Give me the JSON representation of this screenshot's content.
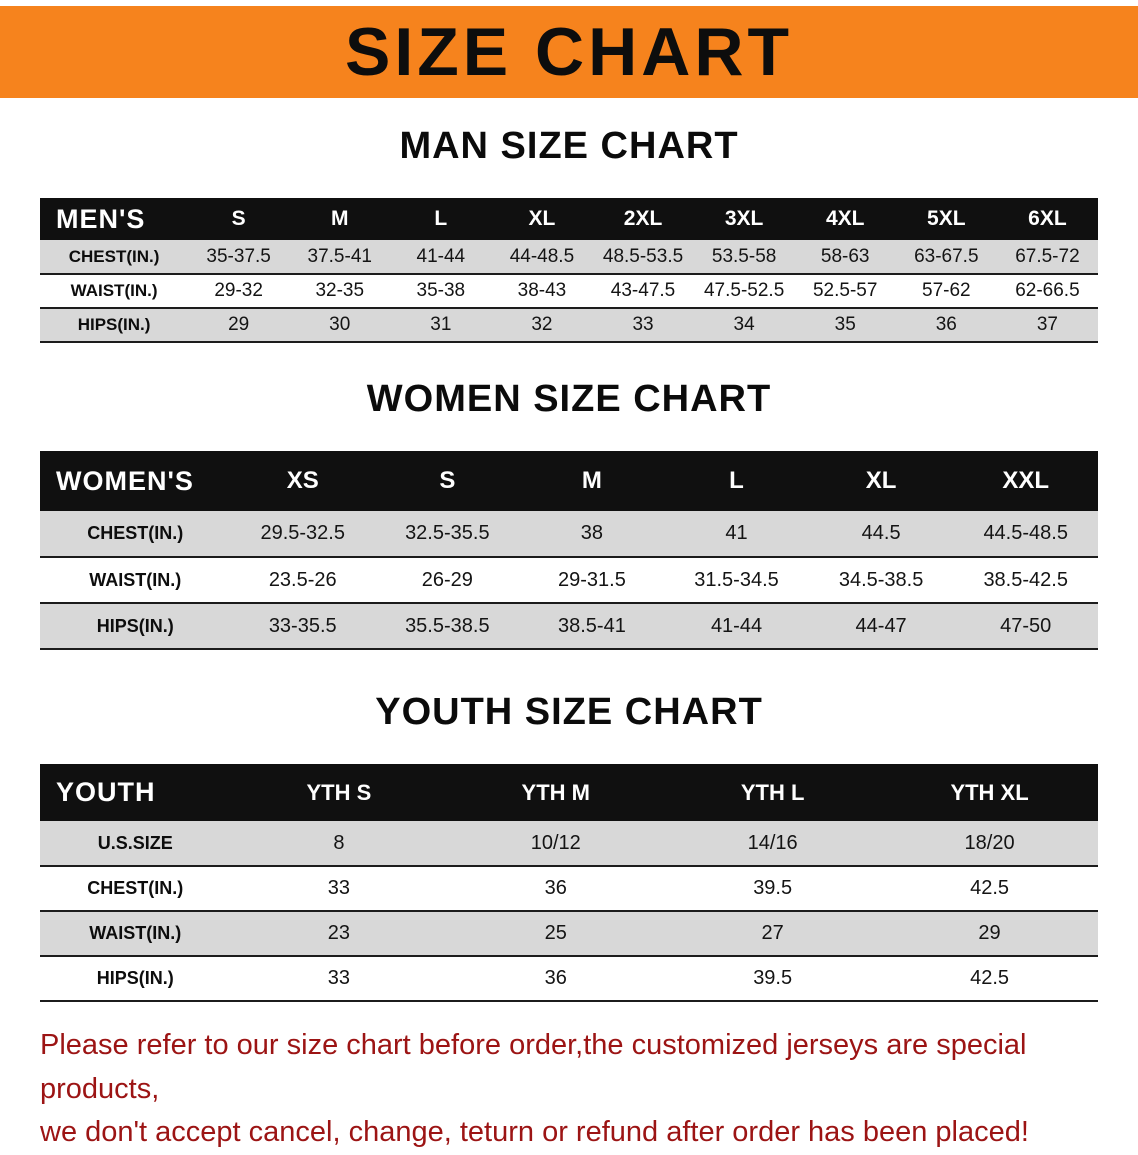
{
  "banner": {
    "title": "SIZE CHART",
    "bg_color": "#f6831d"
  },
  "colors": {
    "stripe": "#d8d8d8",
    "header_bg": "#101010",
    "footer_text": "#9c1414"
  },
  "sections": [
    {
      "heading": "MAN SIZE CHART",
      "table": {
        "label": "MEN'S",
        "columns": [
          "S",
          "M",
          "L",
          "XL",
          "2XL",
          "3XL",
          "4XL",
          "5XL",
          "6XL"
        ],
        "rows": [
          {
            "label": "CHEST(IN.)",
            "values": [
              "35-37.5",
              "37.5-41",
              "41-44",
              "44-48.5",
              "48.5-53.5",
              "53.5-58",
              "58-63",
              "63-67.5",
              "67.5-72"
            ]
          },
          {
            "label": "WAIST(IN.)",
            "values": [
              "29-32",
              "32-35",
              "35-38",
              "38-43",
              "43-47.5",
              "47.5-52.5",
              "52.5-57",
              "57-62",
              "62-66.5"
            ]
          },
          {
            "label": "HIPS(IN.)",
            "values": [
              "29",
              "30",
              "31",
              "32",
              "33",
              "34",
              "35",
              "36",
              "37"
            ]
          }
        ]
      }
    },
    {
      "heading": "WOMEN SIZE CHART",
      "table": {
        "label": "WOMEN'S",
        "columns": [
          "XS",
          "S",
          "M",
          "L",
          "XL",
          "XXL"
        ],
        "rows": [
          {
            "label": "CHEST(IN.)",
            "values": [
              "29.5-32.5",
              "32.5-35.5",
              "38",
              "41",
              "44.5",
              "44.5-48.5"
            ]
          },
          {
            "label": "WAIST(IN.)",
            "values": [
              "23.5-26",
              "26-29",
              "29-31.5",
              "31.5-34.5",
              "34.5-38.5",
              "38.5-42.5"
            ]
          },
          {
            "label": "HIPS(IN.)",
            "values": [
              "33-35.5",
              "35.5-38.5",
              "38.5-41",
              "41-44",
              "44-47",
              "47-50"
            ]
          }
        ]
      }
    },
    {
      "heading": "YOUTH SIZE CHART",
      "table": {
        "label": "YOUTH",
        "columns": [
          "YTH S",
          "YTH M",
          "YTH L",
          "YTH XL"
        ],
        "rows": [
          {
            "label": "U.S.SIZE",
            "values": [
              "8",
              "10/12",
              "14/16",
              "18/20"
            ]
          },
          {
            "label": "CHEST(IN.)",
            "values": [
              "33",
              "36",
              "39.5",
              "42.5"
            ]
          },
          {
            "label": "WAIST(IN.)",
            "values": [
              "23",
              "25",
              "27",
              "29"
            ]
          },
          {
            "label": "HIPS(IN.)",
            "values": [
              "33",
              "36",
              "39.5",
              "42.5"
            ]
          }
        ]
      }
    }
  ],
  "footer": {
    "line1": "Please refer to our size chart before order,the customized jerseys are special products,",
    "line2": "we don't accept cancel, change, teturn or refund after order has been placed!"
  }
}
